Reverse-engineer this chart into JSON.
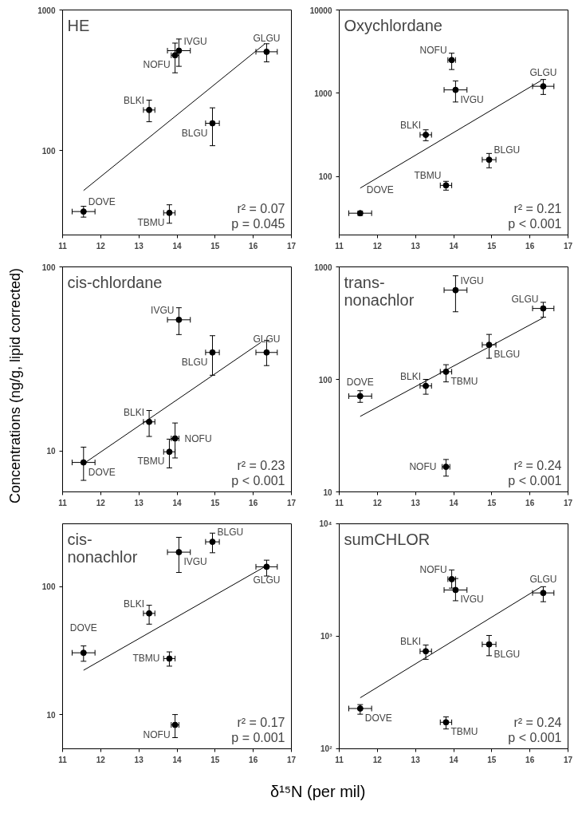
{
  "chart_data": [
    {
      "type": "scatter",
      "title": "HE",
      "log": "y",
      "grid": false,
      "marker": "circle",
      "xlim": [
        11,
        17
      ],
      "xticks": [
        11,
        12,
        13,
        14,
        15,
        16,
        17
      ],
      "ylim": [
        25,
        1000
      ],
      "yticks": [
        100,
        1000
      ],
      "series": [
        {
          "color": "#000000",
          "x": [
            11.55,
            13.27,
            13.8,
            13.95,
            14.05,
            14.93,
            16.35
          ],
          "values": [
            36.7,
            194,
            35.9,
            476,
            513,
            156,
            504
          ],
          "errors": [
            [
              33.5,
              40
            ],
            [
              160,
              228
            ],
            [
              30.3,
              41
            ],
            [
              357,
              581
            ],
            [
              397,
              621
            ],
            [
              108,
              201
            ],
            [
              427,
              575
            ]
          ],
          "xerrors": [
            0.3,
            0.15,
            0.15,
            0.1,
            0.3,
            0.18,
            0.28
          ]
        },
        {
          "type": "line",
          "marker": "none",
          "color": "#000000",
          "x": [
            11.55,
            16.3
          ],
          "values": [
            51.8,
            573
          ]
        }
      ],
      "annotations": [
        {
          "text": "DOVE",
          "x": 11.55,
          "y": 36.7
        },
        {
          "text": "BLKI",
          "x": 13.27,
          "y": 194
        },
        {
          "text": "TBMU",
          "x": 13.8,
          "y": 35.9
        },
        {
          "text": "NOFU",
          "x": 13.95,
          "y": 476
        },
        {
          "text": "IVGU",
          "x": 14.05,
          "y": 513
        },
        {
          "text": "BLGU",
          "x": 14.93,
          "y": 156
        },
        {
          "text": "GLGU",
          "x": 16.35,
          "y": 504
        },
        "r² = 0.07",
        "p = 0.045"
      ]
    },
    {
      "type": "scatter",
      "title": "Oxychlordane",
      "log": "y",
      "grid": false,
      "marker": "circle",
      "xlim": [
        11,
        17
      ],
      "xticks": [
        11,
        12,
        13,
        14,
        15,
        16,
        17
      ],
      "ylim": [
        20,
        10000
      ],
      "yticks": [
        100,
        1000,
        10000
      ],
      "series": [
        {
          "color": "#000000",
          "x": [
            11.55,
            13.27,
            13.8,
            13.95,
            14.05,
            14.93,
            16.35
          ],
          "values": [
            36.5,
            318,
            78.7,
            2510,
            1100,
            160,
            1215
          ],
          "errors": [
            [
              34.3,
              38.6
            ],
            [
              270,
              365
            ],
            [
              69,
              88
            ],
            [
              1930,
              3030
            ],
            [
              787,
              1410
            ],
            [
              128,
              190
            ],
            [
              970,
              1465
            ]
          ],
          "xerrors": [
            0.3,
            0.15,
            0.15,
            0.1,
            0.3,
            0.18,
            0.28
          ]
        },
        {
          "type": "line",
          "marker": "none",
          "color": "#000000",
          "x": [
            11.55,
            16.3
          ],
          "values": [
            73,
            1430
          ]
        }
      ],
      "annotations": [
        {
          "text": "DOVE",
          "x": 11.55,
          "y": 36.5
        },
        {
          "text": "BLKI",
          "x": 13.27,
          "y": 318
        },
        {
          "text": "TBMU",
          "x": 13.8,
          "y": 78.7
        },
        {
          "text": "NOFU",
          "x": 13.95,
          "y": 2510
        },
        {
          "text": "IVGU",
          "x": 14.05,
          "y": 1100
        },
        {
          "text": "BLGU",
          "x": 14.93,
          "y": 160
        },
        {
          "text": "GLGU",
          "x": 16.35,
          "y": 1215
        },
        "r² = 0.21",
        "p < 0.001"
      ]
    },
    {
      "type": "scatter",
      "title": "cis-chlordane",
      "ylabel": "Concentrations (ng/g, lipid corrected)",
      "log": "y",
      "grid": false,
      "marker": "circle",
      "xlim": [
        11,
        17
      ],
      "xticks": [
        11,
        12,
        13,
        14,
        15,
        16,
        17
      ],
      "ylim": [
        6,
        100
      ],
      "yticks": [
        10,
        100
      ],
      "series": [
        {
          "color": "#000000",
          "x": [
            11.55,
            13.27,
            13.8,
            13.95,
            14.05,
            14.93,
            16.35
          ],
          "values": [
            8.67,
            14.4,
            9.9,
            11.7,
            51.6,
            34.3,
            34.3
          ],
          "errors": [
            [
              6.93,
              10.5
            ],
            [
              12,
              16.6
            ],
            [
              8.1,
              11.6
            ],
            [
              9.17,
              14.2
            ],
            [
              42.9,
              60
            ],
            [
              25.8,
              42.3
            ],
            [
              29.1,
              39.9
            ]
          ],
          "xerrors": [
            0.3,
            0.15,
            0.15,
            0.1,
            0.3,
            0.18,
            0.28
          ]
        },
        {
          "type": "line",
          "marker": "none",
          "color": "#000000",
          "x": [
            11.6,
            16.2
          ],
          "values": [
            8.67,
            38.9
          ]
        }
      ],
      "annotations": [
        {
          "text": "DOVE",
          "x": 11.55,
          "y": 8.67
        },
        {
          "text": "BLKI",
          "x": 13.27,
          "y": 14.4
        },
        {
          "text": "TBMU",
          "x": 13.8,
          "y": 9.9
        },
        {
          "text": "NOFU",
          "x": 13.95,
          "y": 11.7
        },
        {
          "text": "IVGU",
          "x": 14.05,
          "y": 51.6
        },
        {
          "text": "BLGU",
          "x": 14.93,
          "y": 34.3
        },
        {
          "text": "GLGU",
          "x": 16.35,
          "y": 34.3
        },
        "r² = 0.23",
        "p < 0.001"
      ]
    },
    {
      "type": "scatter",
      "title": "trans-\nnonachlor",
      "log": "y",
      "grid": false,
      "marker": "circle",
      "xlim": [
        11,
        17
      ],
      "xticks": [
        11,
        12,
        13,
        14,
        15,
        16,
        17
      ],
      "ylim": [
        10,
        1000
      ],
      "yticks": [
        10,
        100,
        1000
      ],
      "series": [
        {
          "color": "#000000",
          "x": [
            11.55,
            13.27,
            13.8,
            13.8,
            14.05,
            14.93,
            16.35
          ],
          "values": [
            71,
            87.5,
            117,
            16.7,
            621,
            203,
            427
          ],
          "errors": [
            [
              62.5,
              79.3
            ],
            [
              73.8,
              100
            ],
            [
              95,
              135
            ],
            [
              13.8,
              19.4
            ],
            [
              399,
              833
            ],
            [
              154,
              251
            ],
            [
              357,
              484
            ]
          ],
          "xerrors": [
            0.3,
            0.15,
            0.15,
            0.1,
            0.3,
            0.18,
            0.28
          ]
        },
        {
          "type": "line",
          "marker": "none",
          "color": "#000000",
          "x": [
            11.55,
            16.35
          ],
          "values": [
            46.9,
            353
          ]
        }
      ],
      "annotations": [
        {
          "text": "DOVE",
          "x": 11.55,
          "y": 71
        },
        {
          "text": "BLKI",
          "x": 13.27,
          "y": 87.5
        },
        {
          "text": "TBMU",
          "x": 13.8,
          "y": 117
        },
        {
          "text": "NOFU",
          "x": 13.8,
          "y": 16.7
        },
        {
          "text": "IVGU",
          "x": 14.05,
          "y": 621
        },
        {
          "text": "BLGU",
          "x": 14.93,
          "y": 203
        },
        {
          "text": "GLGU",
          "x": 16.35,
          "y": 427
        },
        "r² = 0.24",
        "p < 0.001"
      ]
    },
    {
      "type": "scatter",
      "title": "cis-\nnonachlor",
      "xlabel": "δ¹⁵N (per mil)",
      "log": "y",
      "grid": false,
      "marker": "circle",
      "xlim": [
        11,
        17
      ],
      "xticks": [
        11,
        12,
        13,
        14,
        15,
        16,
        17
      ],
      "ylim": [
        5.4,
        310
      ],
      "yticks": [
        10,
        100
      ],
      "series": [
        {
          "color": "#000000",
          "x": [
            11.55,
            13.27,
            13.8,
            13.95,
            14.05,
            14.93,
            16.35
          ],
          "values": [
            30.4,
            61.8,
            27.4,
            8.3,
            186,
            224,
            143
          ],
          "errors": [
            [
              26.1,
              34.4
            ],
            [
              50.9,
              71.5
            ],
            [
              23.9,
              30.9
            ],
            [
              6.6,
              10
            ],
            [
              129,
              243
            ],
            [
              184,
              262
            ],
            [
              121,
              161
            ]
          ],
          "xerrors": [
            0.3,
            0.15,
            0.15,
            0.1,
            0.3,
            0.18,
            0.28
          ]
        },
        {
          "type": "line",
          "marker": "none",
          "color": "#000000",
          "x": [
            11.55,
            16.3
          ],
          "values": [
            22.2,
            143
          ]
        }
      ],
      "annotations": [
        {
          "text": "DOVE",
          "x": 11.55,
          "y": 30.4
        },
        {
          "text": "BLKI",
          "x": 13.27,
          "y": 61.8
        },
        {
          "text": "TBMU",
          "x": 13.8,
          "y": 27.4
        },
        {
          "text": "NOFU",
          "x": 13.95,
          "y": 8.3
        },
        {
          "text": "IVGU",
          "x": 14.05,
          "y": 186
        },
        {
          "text": "BLGU",
          "x": 14.93,
          "y": 224
        },
        {
          "text": "GLGU",
          "x": 16.35,
          "y": 143
        },
        "r² = 0.17",
        "p = 0.001"
      ]
    },
    {
      "type": "scatter",
      "title": "sumCHLOR",
      "log": "y",
      "grid": false,
      "marker": "circle",
      "xlim": [
        11,
        17
      ],
      "xticks": [
        11,
        12,
        13,
        14,
        15,
        16,
        17
      ],
      "ylim": [
        100,
        10000
      ],
      "yticks": [
        {
          "value": 100,
          "label": "10²"
        },
        {
          "value": 1000,
          "label": "10³"
        },
        {
          "value": 10000,
          "label": "10⁴"
        }
      ],
      "series": [
        {
          "color": "#000000",
          "x": [
            11.55,
            13.27,
            13.8,
            13.95,
            14.05,
            14.93,
            16.35
          ],
          "values": [
            228,
            736,
            172,
            3220,
            2580,
            847,
            2430
          ],
          "errors": [
            [
              203,
              247
            ],
            [
              624,
              837
            ],
            [
              150,
              192
            ],
            [
              2680,
              3890
            ],
            [
              2070,
              3260
            ],
            [
              672,
              1017
            ],
            [
              2030,
              2760
            ]
          ],
          "xerrors": [
            0.3,
            0.15,
            0.15,
            0.1,
            0.3,
            0.18,
            0.28
          ]
        },
        {
          "type": "line",
          "marker": "none",
          "color": "#000000",
          "x": [
            11.55,
            16.3
          ],
          "values": [
            284,
            2760
          ]
        }
      ],
      "annotations": [
        {
          "text": "DOVE",
          "x": 11.55,
          "y": 228
        },
        {
          "text": "BLKI",
          "x": 13.27,
          "y": 736
        },
        {
          "text": "TBMU",
          "x": 13.8,
          "y": 172
        },
        {
          "text": "NOFU",
          "x": 13.95,
          "y": 3220
        },
        {
          "text": "IVGU",
          "x": 14.05,
          "y": 2580
        },
        {
          "text": "BLGU",
          "x": 14.93,
          "y": 847
        },
        {
          "text": "GLGU",
          "x": 16.35,
          "y": 2430
        },
        "r² = 0.24",
        "p < 0.001"
      ]
    }
  ]
}
